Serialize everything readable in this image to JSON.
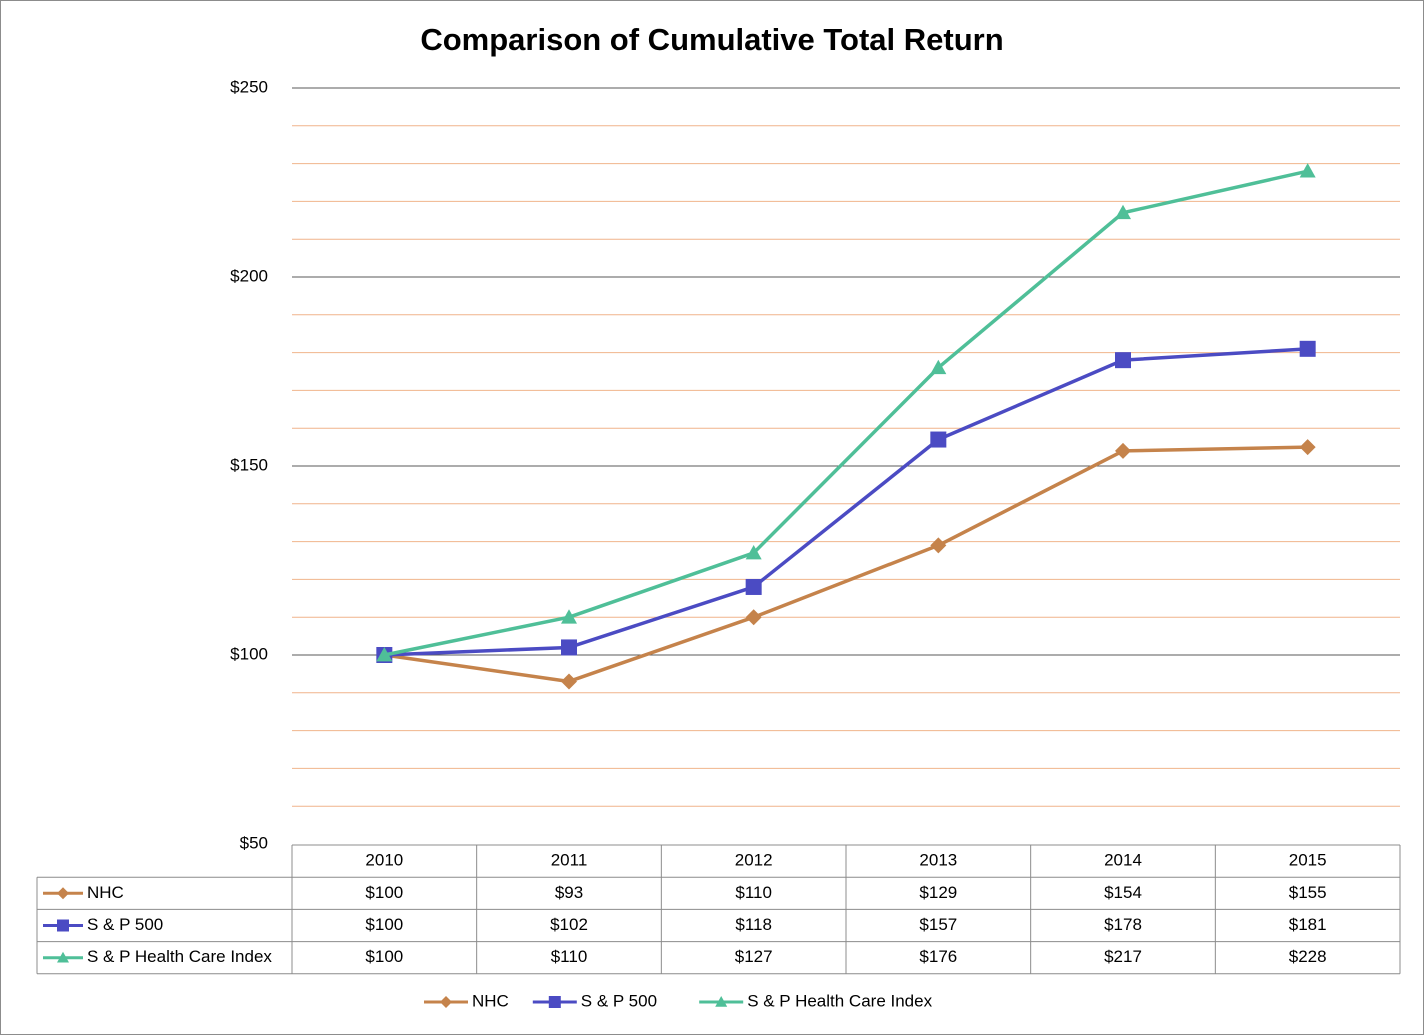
{
  "chart_data": {
    "type": "line",
    "title": "Comparison of Cumulative Total Return",
    "categories": [
      "2010",
      "2011",
      "2012",
      "2013",
      "2014",
      "2015"
    ],
    "series": [
      {
        "name": "NHC",
        "color": "#c5834b",
        "marker": "diamond",
        "values": [
          100,
          93,
          110,
          129,
          154,
          155
        ],
        "value_labels": [
          "$100",
          "$93",
          "$110",
          "$129",
          "$154",
          "$155"
        ]
      },
      {
        "name": "S & P 500",
        "color": "#4b4bc3",
        "marker": "square",
        "values": [
          100,
          102,
          118,
          157,
          178,
          181
        ],
        "value_labels": [
          "$100",
          "$102",
          "$118",
          "$157",
          "$178",
          "$181"
        ]
      },
      {
        "name": "S & P Health Care Index",
        "color": "#4fbf98",
        "marker": "triangle",
        "values": [
          100,
          110,
          127,
          176,
          217,
          228
        ],
        "value_labels": [
          "$100",
          "$110",
          "$127",
          "$176",
          "$217",
          "$228"
        ]
      }
    ],
    "ylim": [
      50,
      250
    ],
    "yticks": [
      {
        "value": 50,
        "label": "$50"
      },
      {
        "value": 100,
        "label": "$100"
      },
      {
        "value": 150,
        "label": "$150"
      },
      {
        "value": 200,
        "label": "$200"
      },
      {
        "value": 250,
        "label": "$250"
      }
    ],
    "minor_yticks": [
      60,
      70,
      80,
      90,
      110,
      120,
      130,
      140,
      160,
      170,
      180,
      190,
      210,
      220,
      230,
      240
    ],
    "grid": true,
    "grid_color": "#5a5a5a",
    "minor_grid_color": "#f0b48c",
    "data_table": true,
    "legend": "bottom"
  }
}
